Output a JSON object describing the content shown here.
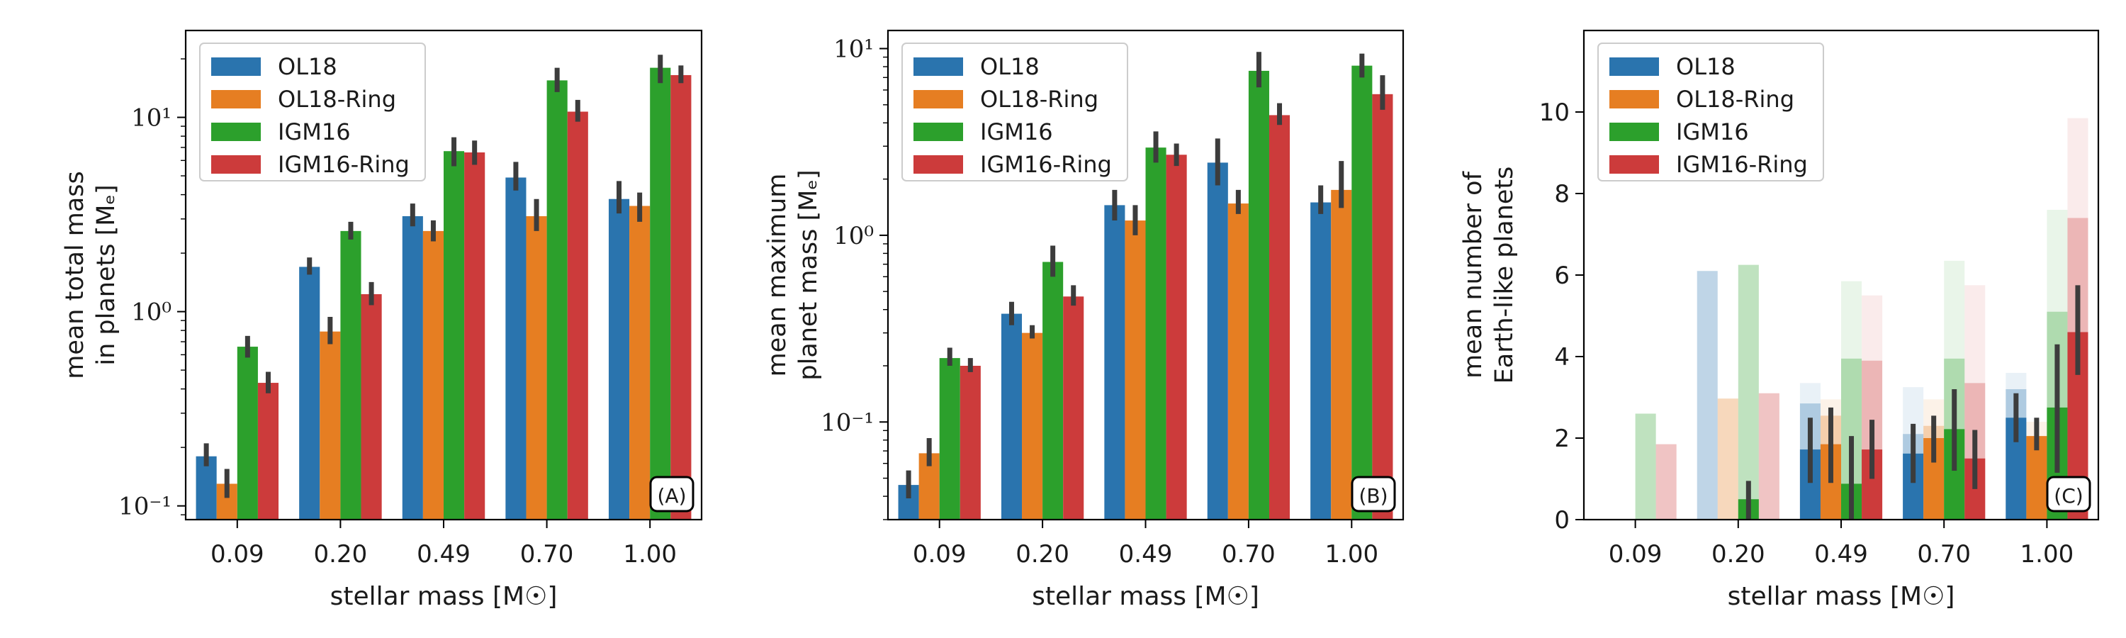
{
  "figure": {
    "xlabel": "stellar mass [M☉]",
    "categories": [
      "0.09",
      "0.20",
      "0.49",
      "0.70",
      "1.00"
    ],
    "series_names": [
      "OL18",
      "OL18-Ring",
      "IGM16",
      "IGM16-Ring"
    ],
    "colors": {
      "OL18": "#2a74ae",
      "OL18-Ring": "#e67e22",
      "IGM16": "#2ca02c",
      "IGM16-Ring": "#cc3b3b"
    }
  },
  "chart_data": [
    {
      "panel": "A",
      "type": "bar",
      "yscale": "log",
      "ylabel_lines": [
        "mean total mass",
        "in planets [Mₑ]"
      ],
      "ylim": [
        0.085,
        28
      ],
      "yticks": [
        {
          "value": 0.1,
          "label": "10⁻¹"
        },
        {
          "value": 1,
          "label": "10⁰"
        },
        {
          "value": 10,
          "label": "10¹"
        }
      ],
      "categories": [
        "0.09",
        "0.20",
        "0.49",
        "0.70",
        "1.00"
      ],
      "series": [
        {
          "name": "OL18",
          "values": [
            0.18,
            1.7,
            3.1,
            4.9,
            3.8
          ],
          "err": [
            [
              0.16,
              0.21
            ],
            [
              1.55,
              1.9
            ],
            [
              2.75,
              3.6
            ],
            [
              4.2,
              5.9
            ],
            [
              3.2,
              4.7
            ]
          ]
        },
        {
          "name": "OL18-Ring",
          "values": [
            0.13,
            0.79,
            2.6,
            3.1,
            3.5
          ],
          "err": [
            [
              0.11,
              0.155
            ],
            [
              0.68,
              0.94
            ],
            [
              2.3,
              2.95
            ],
            [
              2.6,
              3.8
            ],
            [
              2.9,
              4.1
            ]
          ]
        },
        {
          "name": "IGM16",
          "values": [
            0.66,
            2.6,
            6.7,
            15.5,
            18.0
          ],
          "err": [
            [
              0.58,
              0.75
            ],
            [
              2.35,
              2.9
            ],
            [
              5.6,
              7.9
            ],
            [
              13.5,
              18.0
            ],
            [
              15.0,
              21.0
            ]
          ]
        },
        {
          "name": "IGM16-Ring",
          "values": [
            0.43,
            1.23,
            6.6,
            10.7,
            16.5
          ],
          "err": [
            [
              0.38,
              0.49
            ],
            [
              1.08,
              1.42
            ],
            [
              5.7,
              7.6
            ],
            [
              9.5,
              12.3
            ],
            [
              15.0,
              18.5
            ]
          ]
        }
      ],
      "legend": {
        "loc": "upper left"
      },
      "panel_label": "(A)"
    },
    {
      "panel": "B",
      "type": "bar",
      "yscale": "log",
      "ylabel_lines": [
        "mean maximum",
        "planet mass [Mₑ]"
      ],
      "ylim": [
        0.03,
        12.5
      ],
      "yticks": [
        {
          "value": 0.1,
          "label": "10⁻¹"
        },
        {
          "value": 1,
          "label": "10⁰"
        },
        {
          "value": 10,
          "label": "10¹"
        }
      ],
      "categories": [
        "0.09",
        "0.20",
        "0.49",
        "0.70",
        "1.00"
      ],
      "series": [
        {
          "name": "OL18",
          "values": [
            0.046,
            0.38,
            1.45,
            2.45,
            1.5
          ],
          "err": [
            [
              0.039,
              0.055
            ],
            [
              0.33,
              0.44
            ],
            [
              1.2,
              1.75
            ],
            [
              1.85,
              3.3
            ],
            [
              1.3,
              1.85
            ]
          ]
        },
        {
          "name": "OL18-Ring",
          "values": [
            0.068,
            0.3,
            1.2,
            1.48,
            1.75
          ],
          "err": [
            [
              0.058,
              0.082
            ],
            [
              0.28,
              0.33
            ],
            [
              1.0,
              1.45
            ],
            [
              1.3,
              1.75
            ],
            [
              1.4,
              2.5
            ]
          ]
        },
        {
          "name": "IGM16",
          "values": [
            0.22,
            0.72,
            2.95,
            7.6,
            8.1
          ],
          "err": [
            [
              0.2,
              0.25
            ],
            [
              0.6,
              0.88
            ],
            [
              2.45,
              3.6
            ],
            [
              6.2,
              9.6
            ],
            [
              7.0,
              9.4
            ]
          ]
        },
        {
          "name": "IGM16-Ring",
          "values": [
            0.2,
            0.47,
            2.7,
            4.4,
            5.7
          ],
          "err": [
            [
              0.185,
              0.22
            ],
            [
              0.42,
              0.54
            ],
            [
              2.35,
              3.1
            ],
            [
              3.9,
              5.1
            ],
            [
              4.7,
              7.2
            ]
          ]
        }
      ],
      "legend": {
        "loc": "upper left"
      },
      "panel_label": "(B)"
    },
    {
      "panel": "C",
      "type": "bar",
      "yscale": "linear",
      "ylabel_lines": [
        "mean number of",
        "Earth-like planets"
      ],
      "ylim": [
        0,
        12
      ],
      "yticks": [
        {
          "value": 0,
          "label": "0"
        },
        {
          "value": 2,
          "label": "2"
        },
        {
          "value": 4,
          "label": "4"
        },
        {
          "value": 6,
          "label": "6"
        },
        {
          "value": 8,
          "label": "8"
        },
        {
          "value": 10,
          "label": "10"
        }
      ],
      "categories": [
        "0.09",
        "0.20",
        "0.49",
        "0.70",
        "1.00"
      ],
      "background_layers": [
        {
          "opacity": 0.1,
          "values": {
            "OL18": [
              0,
              0,
              3.35,
              3.25,
              3.6
            ],
            "OL18-Ring": [
              0,
              0,
              2.95,
              2.95,
              2.4
            ],
            "IGM16": [
              0,
              0,
              5.85,
              6.35,
              7.6
            ],
            "IGM16-Ring": [
              0,
              0,
              5.5,
              5.75,
              9.85
            ]
          }
        },
        {
          "opacity": 0.3,
          "values": {
            "OL18": [
              0,
              6.1,
              2.85,
              2.1,
              3.2
            ],
            "OL18-Ring": [
              0,
              2.97,
              2.55,
              2.3,
              2.0
            ],
            "IGM16": [
              2.6,
              6.25,
              3.95,
              3.95,
              5.1
            ],
            "IGM16-Ring": [
              1.85,
              3.1,
              3.9,
              3.35,
              7.4
            ]
          }
        }
      ],
      "series": [
        {
          "name": "OL18",
          "values": [
            0,
            0,
            1.72,
            1.62,
            2.5
          ],
          "err": [
            null,
            null,
            [
              0.9,
              2.5
            ],
            [
              0.9,
              2.35
            ],
            [
              1.9,
              3.1
            ]
          ]
        },
        {
          "name": "OL18-Ring",
          "values": [
            0,
            0,
            1.85,
            2.0,
            2.05
          ],
          "err": [
            null,
            null,
            [
              0.9,
              2.75
            ],
            [
              1.4,
              2.55
            ],
            [
              1.7,
              2.5
            ]
          ]
        },
        {
          "name": "IGM16",
          "values": [
            0,
            0.5,
            0.88,
            2.22,
            2.75
          ],
          "err": [
            null,
            [
              0,
              0.95
            ],
            [
              0,
              2.05
            ],
            [
              1.2,
              3.2
            ],
            [
              1.15,
              4.3
            ]
          ]
        },
        {
          "name": "IGM16-Ring",
          "values": [
            0,
            0,
            1.72,
            1.5,
            4.6
          ],
          "err": [
            null,
            null,
            [
              1.0,
              2.45
            ],
            [
              0.75,
              2.2
            ],
            [
              3.55,
              5.75
            ]
          ]
        }
      ],
      "legend": {
        "loc": "upper left"
      },
      "panel_label": "(C)"
    }
  ]
}
